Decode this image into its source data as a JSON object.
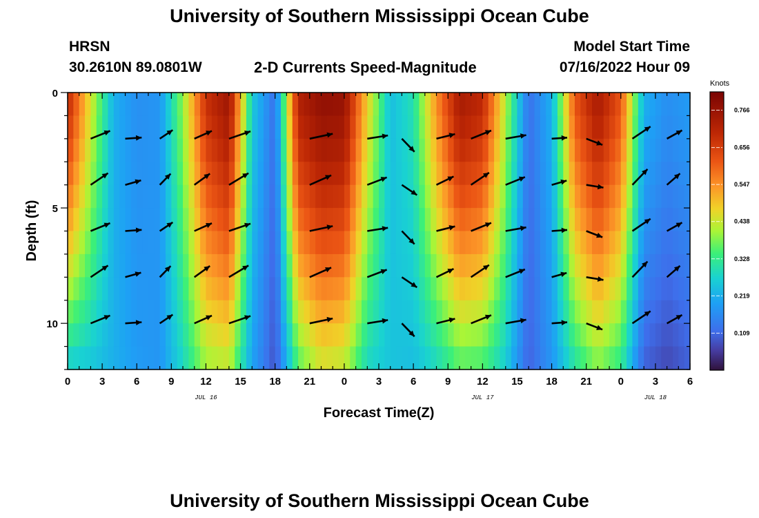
{
  "page": {
    "title_top": "University of Southern Mississippi Ocean Cube",
    "title_bottom": "University of Southern Mississippi Ocean Cube",
    "station": "HRSN",
    "location": "30.2610N  89.0801W",
    "subtitle": "2-D Currents Speed-Magnitude",
    "model_start_label": "Model Start Time",
    "model_start_value": "07/16/2022 Hour 09"
  },
  "chart_data": {
    "type": "heatmap",
    "title": "2-D Currents Speed-Magnitude",
    "xlabel": "Forecast Time(Z)",
    "ylabel": "Depth (ft)",
    "colorbar_label": "Knots",
    "x_range": [
      0,
      54
    ],
    "y_range": [
      0,
      12
    ],
    "x_ticks": [
      0,
      3,
      6,
      9,
      12,
      15,
      18,
      21,
      24,
      27,
      30,
      33,
      36,
      39,
      42,
      45,
      48,
      51,
      54
    ],
    "x_tick_labels": [
      "0",
      "3",
      "6",
      "9",
      "12",
      "15",
      "18",
      "21",
      "0",
      "3",
      "6",
      "9",
      "12",
      "15",
      "18",
      "21",
      "0",
      "3",
      "6"
    ],
    "y_ticks": [
      0,
      5,
      10
    ],
    "y_tick_labels": [
      "0",
      "5",
      "10"
    ],
    "date_labels": [
      {
        "x": 12,
        "text": "JUL 16"
      },
      {
        "x": 36,
        "text": "JUL 17"
      },
      {
        "x": 51,
        "text": "JUL 18"
      }
    ],
    "colorbar_ticks": [
      "0.766",
      "0.656",
      "0.547",
      "0.438",
      "0.328",
      "0.219",
      "0.109"
    ],
    "colorbar_range": [
      0.0,
      0.82
    ],
    "x_hours": [
      0,
      2,
      4,
      6,
      8,
      10,
      12,
      14,
      16,
      18,
      20,
      22,
      24,
      26,
      28,
      30,
      32,
      34,
      36,
      38,
      40,
      42,
      44,
      46,
      48,
      50,
      52,
      54
    ],
    "surface_speed": [
      0.7,
      0.45,
      0.22,
      0.17,
      0.18,
      0.4,
      0.68,
      0.76,
      0.26,
      0.12,
      0.72,
      0.78,
      0.77,
      0.48,
      0.24,
      0.3,
      0.55,
      0.74,
      0.7,
      0.42,
      0.12,
      0.22,
      0.62,
      0.74,
      0.62,
      0.22,
      0.17,
      0.19
    ],
    "bottom_speed": [
      0.26,
      0.25,
      0.22,
      0.19,
      0.18,
      0.28,
      0.4,
      0.42,
      0.2,
      0.08,
      0.35,
      0.44,
      0.42,
      0.28,
      0.25,
      0.24,
      0.28,
      0.35,
      0.34,
      0.26,
      0.1,
      0.18,
      0.3,
      0.38,
      0.32,
      0.1,
      0.07,
      0.1
    ],
    "arrow_hours": [
      2,
      5,
      8,
      11,
      14,
      21,
      26,
      29,
      32,
      35,
      38,
      42,
      45,
      49,
      52
    ],
    "arrow_depths": [
      2,
      4,
      6,
      8,
      10
    ],
    "arrow_directions_deg": [
      28,
      10,
      40,
      30,
      25,
      18,
      15,
      -40,
      20,
      28,
      16,
      10,
      -15,
      40,
      35
    ],
    "arrow_speeds": [
      0.55,
      0.3,
      0.25,
      0.45,
      0.65,
      0.7,
      0.55,
      0.4,
      0.45,
      0.6,
      0.55,
      0.25,
      0.35,
      0.6,
      0.35
    ]
  }
}
